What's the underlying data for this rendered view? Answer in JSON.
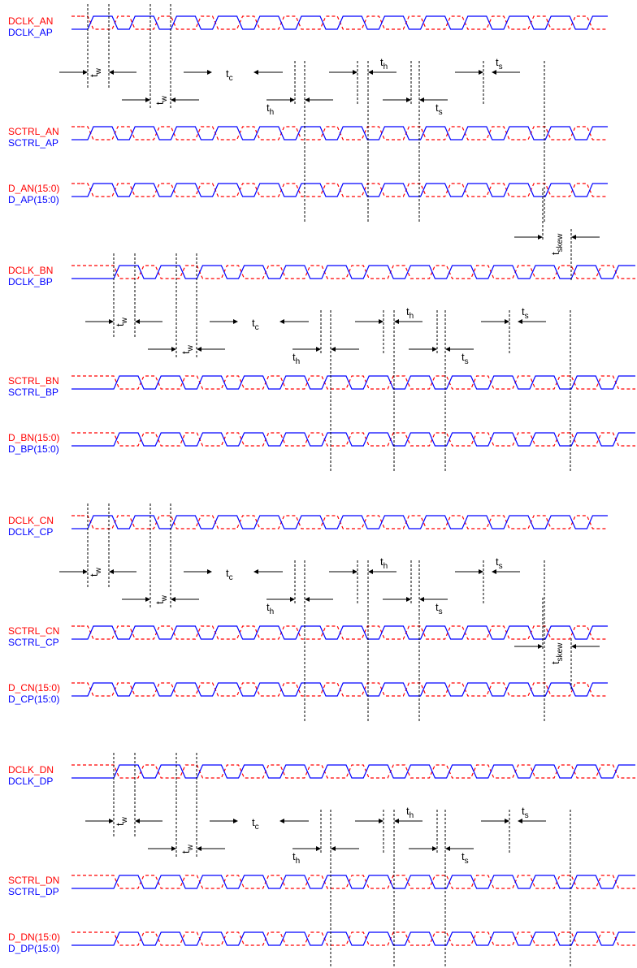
{
  "colors": {
    "negative": "#ff0000",
    "positive": "#0000ff",
    "annotation": "#000000"
  },
  "annotations": {
    "t_base": "t",
    "w_sub": "w",
    "c_sub": "c",
    "h_sub": "h",
    "s_sub": "s",
    "skew_sub": "skew"
  },
  "groups": [
    {
      "id": "A",
      "signals": [
        {
          "neg": "DCLK_AN",
          "pos": "DCLK_AP"
        },
        {
          "neg": "SCTRL_AN",
          "pos": "SCTRL_AP"
        },
        {
          "neg": "D_AN(15:0)",
          "pos": "D_AP(15:0)"
        }
      ]
    },
    {
      "id": "B",
      "signals": [
        {
          "neg": "DCLK_BN",
          "pos": "DCLK_BP"
        },
        {
          "neg": "SCTRL_BN",
          "pos": "SCTRL_BP"
        },
        {
          "neg": "D_BN(15:0)",
          "pos": "D_BP(15:0)"
        }
      ]
    },
    {
      "id": "C",
      "signals": [
        {
          "neg": "DCLK_CN",
          "pos": "DCLK_CP"
        },
        {
          "neg": "SCTRL_CN",
          "pos": "SCTRL_CP"
        },
        {
          "neg": "D_CN(15:0)",
          "pos": "D_CP(15:0)"
        }
      ]
    },
    {
      "id": "D",
      "signals": [
        {
          "neg": "DCLK_DN",
          "pos": "DCLK_DP"
        },
        {
          "neg": "SCTRL_DN",
          "pos": "SCTRL_DP"
        },
        {
          "neg": "D_DN(15:0)",
          "pos": "D_DP(15:0)"
        }
      ]
    }
  ]
}
